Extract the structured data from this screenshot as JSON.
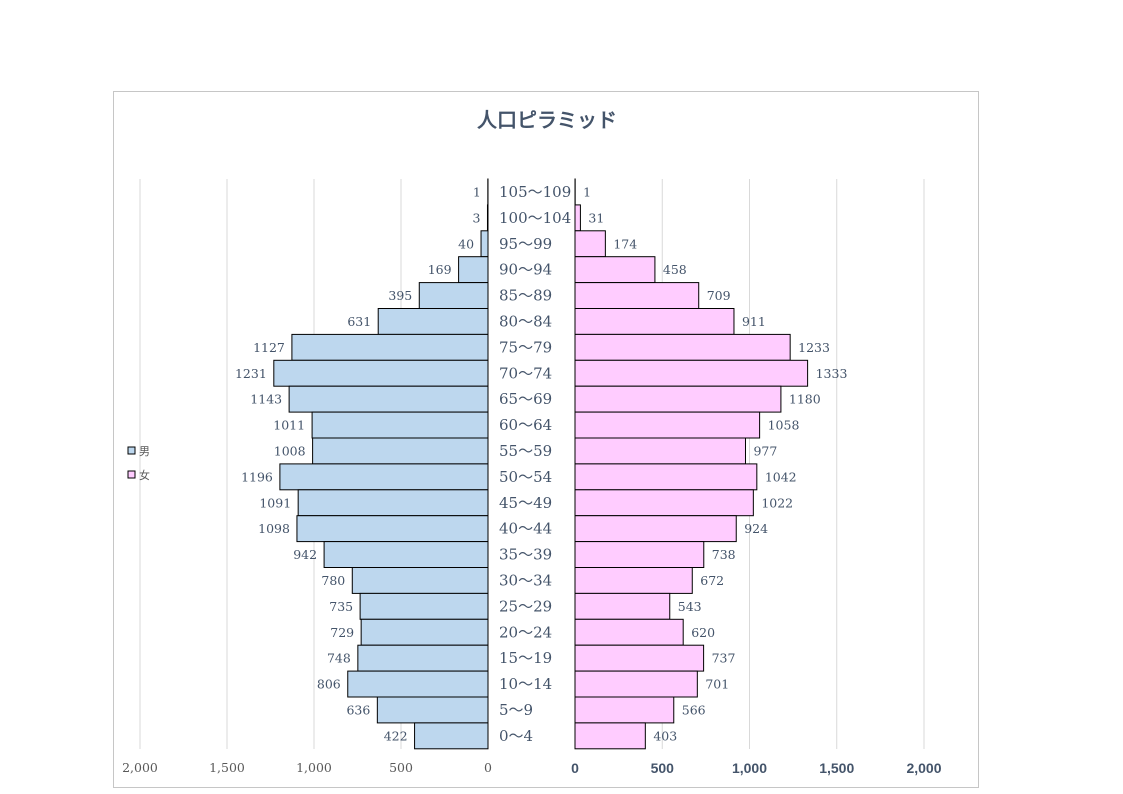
{
  "chart_data": {
    "type": "bar",
    "title": "人口ピラミッド",
    "categories": [
      "105～109",
      "100～104",
      "95～99",
      "90～94",
      "85～89",
      "80～84",
      "75～79",
      "70～74",
      "65～69",
      "60～64",
      "55～59",
      "50～54",
      "45～49",
      "40～44",
      "35～39",
      "30～34",
      "25～29",
      "20～24",
      "15～19",
      "10～14",
      "5～9",
      "0～4"
    ],
    "series": [
      {
        "name": "男",
        "color": "#bdd7ee",
        "values": [
          1,
          3,
          40,
          169,
          395,
          631,
          1127,
          1231,
          1143,
          1011,
          1008,
          1196,
          1091,
          1098,
          942,
          780,
          735,
          729,
          748,
          806,
          636,
          422
        ]
      },
      {
        "name": "女",
        "color": "#ffccff",
        "values": [
          1,
          31,
          174,
          458,
          709,
          911,
          1233,
          1333,
          1180,
          1058,
          977,
          1042,
          1022,
          924,
          738,
          672,
          543,
          620,
          737,
          701,
          566,
          403
        ]
      }
    ],
    "xlim": [
      0,
      2000
    ],
    "left_ticks": [
      "2,000",
      "1,500",
      "1,000",
      "500",
      "0"
    ],
    "right_ticks": [
      "0",
      "500",
      "1,000",
      "1,500",
      "2,000"
    ],
    "tick_values": [
      0,
      500,
      1000,
      1500,
      2000
    ],
    "legend_position": "left",
    "grid": true
  }
}
